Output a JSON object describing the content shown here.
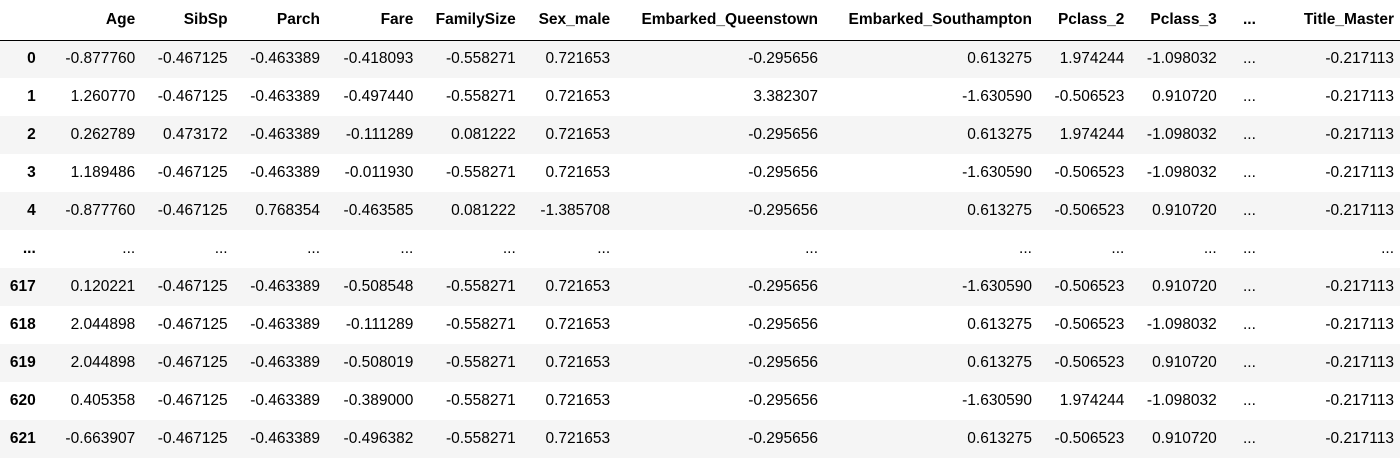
{
  "dataframe": {
    "columns": [
      "",
      "Age",
      "SibSp",
      "Parch",
      "Fare",
      "FamilySize",
      "Sex_male",
      "Embarked_Queenstown",
      "Embarked_Southampton",
      "Pclass_2",
      "Pclass_3",
      "...",
      "Title_Master"
    ],
    "rows": [
      {
        "index": "0",
        "cells": [
          "-0.877760",
          "-0.467125",
          "-0.463389",
          "-0.418093",
          "-0.558271",
          "0.721653",
          "-0.295656",
          "0.613275",
          "1.974244",
          "-1.098032",
          "...",
          "-0.217113"
        ]
      },
      {
        "index": "1",
        "cells": [
          "1.260770",
          "-0.467125",
          "-0.463389",
          "-0.497440",
          "-0.558271",
          "0.721653",
          "3.382307",
          "-1.630590",
          "-0.506523",
          "0.910720",
          "...",
          "-0.217113"
        ]
      },
      {
        "index": "2",
        "cells": [
          "0.262789",
          "0.473172",
          "-0.463389",
          "-0.111289",
          "0.081222",
          "0.721653",
          "-0.295656",
          "0.613275",
          "1.974244",
          "-1.098032",
          "...",
          "-0.217113"
        ]
      },
      {
        "index": "3",
        "cells": [
          "1.189486",
          "-0.467125",
          "-0.463389",
          "-0.011930",
          "-0.558271",
          "0.721653",
          "-0.295656",
          "-1.630590",
          "-0.506523",
          "-1.098032",
          "...",
          "-0.217113"
        ]
      },
      {
        "index": "4",
        "cells": [
          "-0.877760",
          "-0.467125",
          "0.768354",
          "-0.463585",
          "0.081222",
          "-1.385708",
          "-0.295656",
          "0.613275",
          "-0.506523",
          "0.910720",
          "...",
          "-0.217113"
        ]
      },
      {
        "index": "...",
        "cells": [
          "...",
          "...",
          "...",
          "...",
          "...",
          "...",
          "...",
          "...",
          "...",
          "...",
          "...",
          "..."
        ]
      },
      {
        "index": "617",
        "cells": [
          "0.120221",
          "-0.467125",
          "-0.463389",
          "-0.508548",
          "-0.558271",
          "0.721653",
          "-0.295656",
          "-1.630590",
          "-0.506523",
          "0.910720",
          "...",
          "-0.217113"
        ]
      },
      {
        "index": "618",
        "cells": [
          "2.044898",
          "-0.467125",
          "-0.463389",
          "-0.111289",
          "-0.558271",
          "0.721653",
          "-0.295656",
          "0.613275",
          "-0.506523",
          "-1.098032",
          "...",
          "-0.217113"
        ]
      },
      {
        "index": "619",
        "cells": [
          "2.044898",
          "-0.467125",
          "-0.463389",
          "-0.508019",
          "-0.558271",
          "0.721653",
          "-0.295656",
          "0.613275",
          "-0.506523",
          "0.910720",
          "...",
          "-0.217113"
        ]
      },
      {
        "index": "620",
        "cells": [
          "0.405358",
          "-0.467125",
          "-0.463389",
          "-0.389000",
          "-0.558271",
          "0.721653",
          "-0.295656",
          "-1.630590",
          "1.974244",
          "-1.098032",
          "...",
          "-0.217113"
        ]
      },
      {
        "index": "621",
        "cells": [
          "-0.663907",
          "-0.467125",
          "-0.463389",
          "-0.496382",
          "-0.558271",
          "0.721653",
          "-0.295656",
          "0.613275",
          "-0.506523",
          "0.910720",
          "...",
          "-0.217113"
        ]
      }
    ]
  },
  "colors": {
    "stripe": "#f5f5f5",
    "background": "#ffffff",
    "header_rule": "#000000"
  }
}
